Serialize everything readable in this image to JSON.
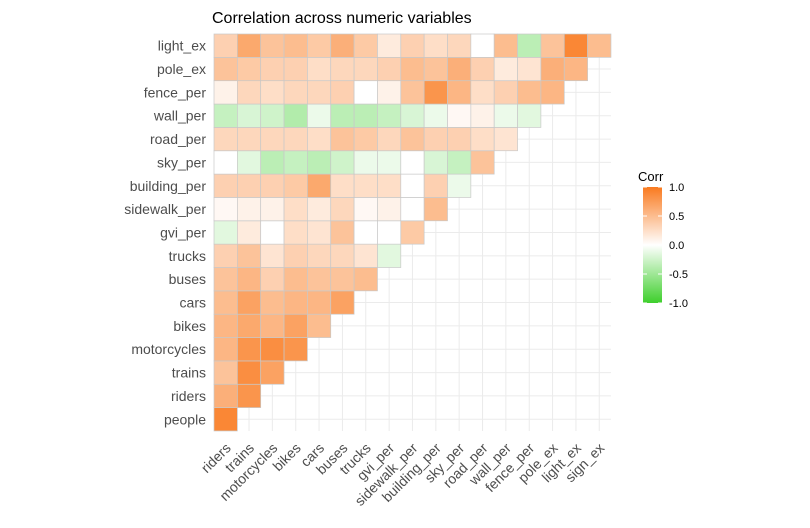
{
  "chart_data": {
    "type": "heatmap",
    "title": "Correlation across numeric variables",
    "x_labels": [
      "riders",
      "trains",
      "motorcycles",
      "bikes",
      "cars",
      "buses",
      "trucks",
      "gvi_per",
      "sidewalk_per",
      "building_per",
      "sky_per",
      "road_per",
      "wall_per",
      "fence_per",
      "pole_ex",
      "light_ex",
      "sign_ex"
    ],
    "y_labels": [
      "people",
      "riders",
      "trains",
      "motorcycles",
      "bikes",
      "cars",
      "buses",
      "trucks",
      "gvi_per",
      "sidewalk_per",
      "building_per",
      "sky_per",
      "road_per",
      "wall_per",
      "fence_per",
      "pole_ex",
      "light_ex"
    ],
    "matrix": [
      [
        0.9,
        null,
        null,
        null,
        null,
        null,
        null,
        null,
        null,
        null,
        null,
        null,
        null,
        null,
        null,
        null,
        null
      ],
      [
        0.6,
        0.8,
        null,
        null,
        null,
        null,
        null,
        null,
        null,
        null,
        null,
        null,
        null,
        null,
        null,
        null,
        null
      ],
      [
        0.45,
        0.85,
        0.7,
        null,
        null,
        null,
        null,
        null,
        null,
        null,
        null,
        null,
        null,
        null,
        null,
        null,
        null
      ],
      [
        0.55,
        0.8,
        0.85,
        0.8,
        null,
        null,
        null,
        null,
        null,
        null,
        null,
        null,
        null,
        null,
        null,
        null,
        null
      ],
      [
        0.55,
        0.65,
        0.55,
        0.7,
        0.5,
        null,
        null,
        null,
        null,
        null,
        null,
        null,
        null,
        null,
        null,
        null,
        null
      ],
      [
        0.5,
        0.7,
        0.5,
        0.55,
        0.55,
        0.7,
        null,
        null,
        null,
        null,
        null,
        null,
        null,
        null,
        null,
        null,
        null
      ],
      [
        0.45,
        0.55,
        0.35,
        0.5,
        0.45,
        0.45,
        0.5,
        null,
        null,
        null,
        null,
        null,
        null,
        null,
        null,
        null,
        null
      ],
      [
        0.35,
        0.45,
        0.2,
        0.35,
        0.3,
        0.3,
        0.2,
        -0.15,
        null,
        null,
        null,
        null,
        null,
        null,
        null,
        null,
        null
      ],
      [
        -0.15,
        0.15,
        0.0,
        0.25,
        0.2,
        0.45,
        0.0,
        0.0,
        0.4,
        null,
        null,
        null,
        null,
        null,
        null,
        null,
        null
      ],
      [
        0.05,
        0.1,
        0.1,
        0.25,
        0.15,
        0.3,
        0.05,
        0.1,
        0.0,
        0.5,
        null,
        null,
        null,
        null,
        null,
        null,
        null
      ],
      [
        0.35,
        0.35,
        0.35,
        0.4,
        0.65,
        0.25,
        0.25,
        0.25,
        0.0,
        0.35,
        -0.1,
        null,
        null,
        null,
        null,
        null,
        null
      ],
      [
        0.0,
        -0.15,
        -0.35,
        -0.3,
        -0.35,
        -0.25,
        -0.1,
        -0.1,
        0.0,
        -0.2,
        -0.3,
        0.45,
        null,
        null,
        null,
        null,
        null
      ],
      [
        0.3,
        0.3,
        0.3,
        0.3,
        0.25,
        0.45,
        0.4,
        0.3,
        0.45,
        0.35,
        0.35,
        0.25,
        0.2,
        null,
        null,
        null,
        null
      ],
      [
        -0.3,
        -0.2,
        -0.25,
        -0.4,
        -0.1,
        -0.35,
        -0.35,
        -0.3,
        -0.2,
        -0.1,
        0.05,
        0.1,
        -0.1,
        -0.15,
        null,
        null,
        null
      ],
      [
        0.1,
        0.3,
        0.25,
        0.3,
        0.3,
        0.35,
        0.0,
        0.1,
        0.45,
        0.8,
        0.55,
        0.25,
        0.35,
        0.5,
        0.55,
        null,
        null
      ],
      [
        0.45,
        0.4,
        0.35,
        0.35,
        0.25,
        0.3,
        0.3,
        0.35,
        0.5,
        0.45,
        0.6,
        0.35,
        0.15,
        0.2,
        0.6,
        0.55,
        null
      ],
      [
        0.35,
        0.65,
        0.45,
        0.5,
        0.4,
        0.6,
        0.4,
        0.15,
        0.35,
        0.25,
        0.3,
        0.0,
        0.5,
        -0.35,
        0.45,
        0.9,
        0.5
      ]
    ],
    "legend": {
      "title": "Corr",
      "ticks": [
        "1.0",
        "0.5",
        "0.0",
        "-0.5",
        "-1.0"
      ],
      "placement": "right"
    },
    "value_range": [
      -1,
      1
    ],
    "colors": {
      "high": "#f97a1f",
      "mid": "#ffffff",
      "low": "#3ecf2c",
      "grid": "#ebebeb",
      "cell_border": "#c8c8c8"
    }
  }
}
